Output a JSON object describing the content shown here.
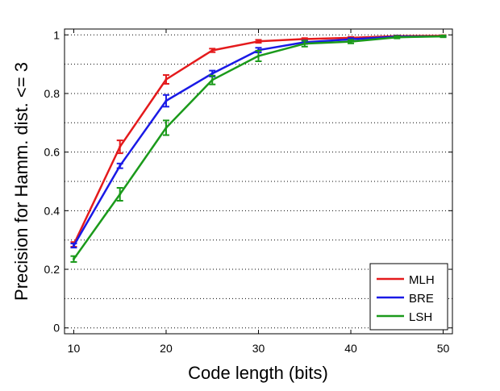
{
  "chart_data": {
    "type": "line",
    "title": "",
    "xlabel": "Code length (bits)",
    "ylabel": "Precision for Hamm. dist. <= 3",
    "xlim": [
      9,
      51
    ],
    "ylim": [
      -0.02,
      1.02
    ],
    "xticks": [
      10,
      20,
      30,
      40,
      50
    ],
    "yticks": [
      0,
      0.2,
      0.4,
      0.6,
      0.8,
      1
    ],
    "xtick_labels": [
      "10",
      "20",
      "30",
      "40",
      "50"
    ],
    "ytick_labels": [
      "0",
      "0.2",
      "0.4",
      "0.6",
      "0.8",
      "1"
    ],
    "grid": "horizontal dotted",
    "legend_position": "bottom-right",
    "x": [
      10,
      15,
      20,
      25,
      30,
      35,
      40,
      45,
      50
    ],
    "series": [
      {
        "name": "MLH",
        "color": "#e41a1c",
        "values": [
          0.285,
          0.618,
          0.848,
          0.947,
          0.978,
          0.986,
          0.99,
          0.996,
          0.997
        ],
        "errors": [
          0.008,
          0.022,
          0.015,
          0.006,
          0.005,
          0.003,
          0.003,
          0.002,
          0.002
        ]
      },
      {
        "name": "BRE",
        "color": "#1a1ae6",
        "values": [
          0.281,
          0.553,
          0.775,
          0.868,
          0.948,
          0.975,
          0.985,
          0.994,
          0.995
        ],
        "errors": [
          0.007,
          0.008,
          0.02,
          0.01,
          0.008,
          0.006,
          0.004,
          0.003,
          0.002
        ]
      },
      {
        "name": "LSH",
        "color": "#1b9a1b",
        "values": [
          0.235,
          0.456,
          0.683,
          0.846,
          0.928,
          0.97,
          0.977,
          0.992,
          0.995
        ],
        "errors": [
          0.01,
          0.022,
          0.025,
          0.015,
          0.018,
          0.01,
          0.006,
          0.004,
          0.003
        ]
      }
    ]
  }
}
